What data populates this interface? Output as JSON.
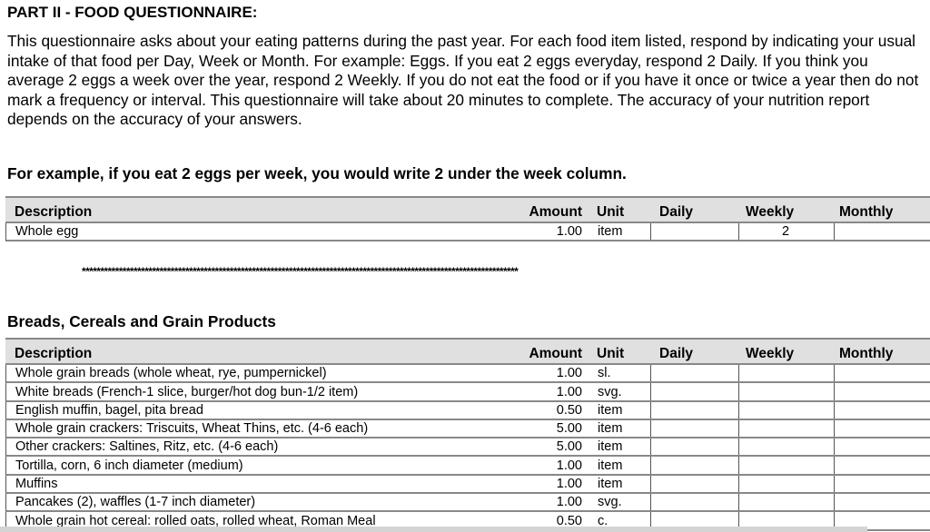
{
  "heading": "PART II - FOOD QUESTIONNAIRE:",
  "intro": "This questionnaire asks about your eating patterns during the past year.  For each food item listed, respond by indicating your usual intake of that food per Day, Week or Month.  For example:  Eggs.  If you eat 2 eggs everyday, respond 2 Daily.  If you think you average 2 eggs a week over the year, respond 2 Weekly.  If you do not eat the food or if you have it once or twice a year then do not mark a frequency or interval.  This questionnaire will take about 20 minutes to complete.  The accuracy of your nutrition report depends on the accuracy of your answers.",
  "example_note": "For example, if you eat 2 eggs per week, you would write 2 under the week column.",
  "columns": {
    "description": "Description",
    "amount": "Amount",
    "unit": "Unit",
    "daily": "Daily",
    "weekly": "Weekly",
    "monthly": "Monthly"
  },
  "example_row": {
    "description": "Whole egg",
    "amount": "1.00",
    "unit": "item",
    "daily": "",
    "weekly": "2",
    "monthly": ""
  },
  "separator": "**********************************************************************************************************************",
  "section_title": "Breads, Cereals and Grain Products",
  "rows": [
    {
      "description": "Whole grain breads (whole wheat, rye, pumpernickel)",
      "amount": "1.00",
      "unit": "sl."
    },
    {
      "description": "White breads (French-1 slice, burger/hot dog bun-1/2 item)",
      "amount": "1.00",
      "unit": "svg."
    },
    {
      "description": "English muffin, bagel, pita bread",
      "amount": "0.50",
      "unit": "item"
    },
    {
      "description": "Whole grain crackers: Triscuits, Wheat Thins, etc. (4-6 each)",
      "amount": "5.00",
      "unit": "item"
    },
    {
      "description": "Other crackers: Saltines, Ritz, etc. (4-6 each)",
      "amount": "5.00",
      "unit": "item"
    },
    {
      "description": "Tortilla, corn, 6 inch diameter (medium)",
      "amount": "1.00",
      "unit": "item"
    },
    {
      "description": "Muffins",
      "amount": "1.00",
      "unit": "item"
    },
    {
      "description": "Pancakes (2), waffles (1-7 inch diameter)",
      "amount": "1.00",
      "unit": "svg."
    },
    {
      "description": "Whole grain hot cereal: rolled oats, rolled wheat, Roman Meal",
      "amount": "0.50",
      "unit": "c."
    }
  ]
}
